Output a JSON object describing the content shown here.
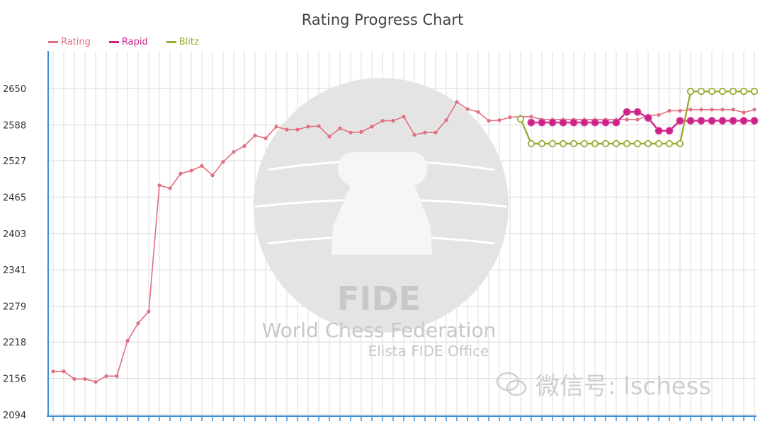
{
  "chart_data": {
    "type": "line",
    "title": "Rating Progress Chart",
    "ylim": [
      2094,
      2650
    ],
    "yticks": [
      2094,
      2156,
      2218,
      2279,
      2341,
      2403,
      2465,
      2527,
      2588,
      2650
    ],
    "grid": true,
    "legend_position": "top-left",
    "n_periods": 67,
    "series": [
      {
        "name": "Rating",
        "color": "#e07080",
        "marker": "dot",
        "x": [
          0,
          1,
          2,
          3,
          4,
          5,
          6,
          7,
          8,
          9,
          10,
          11,
          12,
          13,
          14,
          15,
          16,
          17,
          18,
          19,
          20,
          21,
          22,
          23,
          24,
          25,
          26,
          27,
          28,
          29,
          30,
          31,
          32,
          33,
          34,
          35,
          36,
          37,
          38,
          39,
          40,
          41,
          42,
          43,
          44,
          45,
          46,
          47,
          48,
          49,
          50,
          51,
          52,
          53,
          54,
          55,
          56,
          57,
          58,
          59,
          60,
          61,
          62,
          63,
          64,
          65,
          66
        ],
        "values": [
          2168,
          2168,
          2155,
          2155,
          2150,
          2160,
          2160,
          2220,
          2250,
          2270,
          2485,
          2480,
          2505,
          2510,
          2518,
          2502,
          2525,
          2542,
          2552,
          2570,
          2565,
          2585,
          2580,
          2580,
          2585,
          2586,
          2568,
          2582,
          2575,
          2576,
          2585,
          2595,
          2595,
          2602,
          2571,
          2575,
          2575,
          2596,
          2627,
          2615,
          2610,
          2595,
          2596,
          2601,
          2602,
          2602,
          2597,
          2597,
          2597,
          2597,
          2597,
          2597,
          2597,
          2597,
          2597,
          2597,
          2604,
          2605,
          2612,
          2612,
          2614,
          2614,
          2614,
          2614,
          2614,
          2609,
          2614
        ]
      },
      {
        "name": "Rapid",
        "color": "#cc2288",
        "marker": "filled-circle",
        "x": [
          45,
          46,
          47,
          48,
          49,
          50,
          51,
          52,
          53,
          54,
          55,
          56,
          57,
          58,
          59,
          60,
          61,
          62,
          63,
          64,
          65,
          66
        ],
        "values": [
          2592,
          2592,
          2592,
          2592,
          2592,
          2592,
          2592,
          2592,
          2592,
          2610,
          2610,
          2600,
          2578,
          2578,
          2595,
          2595,
          2595,
          2595,
          2595,
          2595,
          2595,
          2595
        ]
      },
      {
        "name": "Blitz",
        "color": "#9aaa33",
        "marker": "hollow-circle",
        "x": [
          44,
          45,
          46,
          47,
          48,
          49,
          50,
          51,
          52,
          53,
          54,
          55,
          56,
          57,
          58,
          59,
          60,
          61,
          62,
          63,
          64,
          65,
          66
        ],
        "values": [
          2598,
          2556,
          2556,
          2556,
          2556,
          2556,
          2556,
          2556,
          2556,
          2556,
          2556,
          2556,
          2556,
          2556,
          2556,
          2556,
          2645,
          2645,
          2645,
          2645,
          2645,
          2645,
          2645
        ]
      }
    ]
  },
  "watermark": {
    "org_letters": "FIDE",
    "org_name": "World Chess Federation",
    "office": "Elista FIDE Office"
  },
  "wechat": {
    "text": "微信号: lschess"
  }
}
